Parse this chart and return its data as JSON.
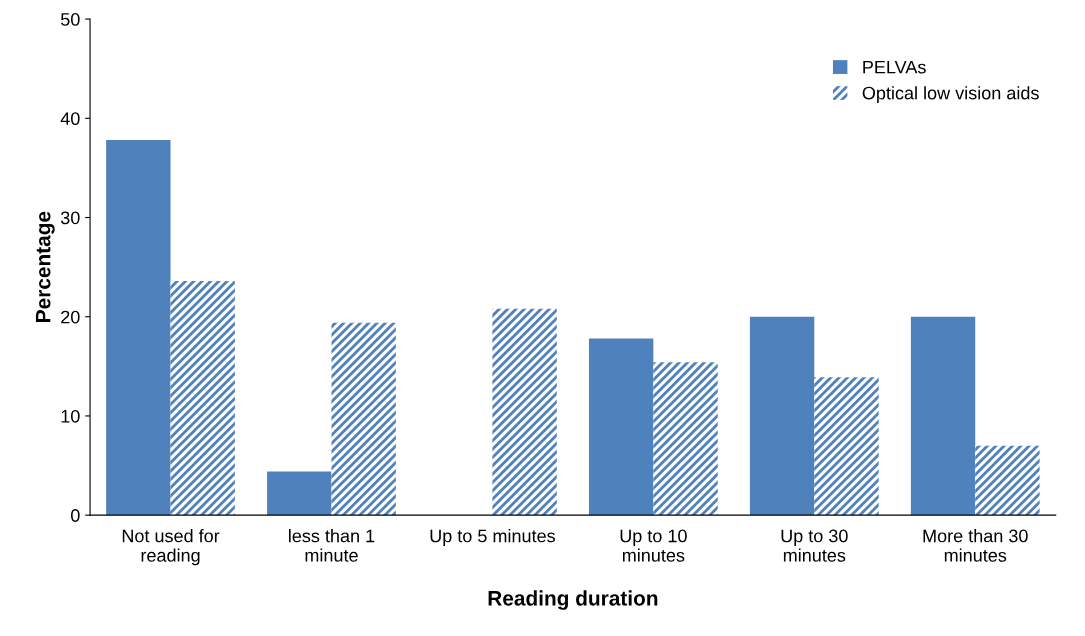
{
  "chart_data": {
    "type": "bar",
    "xlabel": "Reading duration",
    "ylabel": "Percentage",
    "categories": [
      "Not used for\nreading",
      "less than 1\nminute",
      "Up to 5 minutes",
      "Up to 10\nminutes",
      "Up to 30\nminutes",
      "More than 30\nminutes"
    ],
    "series": [
      {
        "name": "PELVAs",
        "color": "#4f81bd",
        "values": [
          37.8,
          4.4,
          0,
          17.8,
          20.0,
          20.0
        ]
      },
      {
        "name": "Optical low vision aids",
        "color": "#4f81bd",
        "values": [
          23.6,
          19.4,
          20.8,
          15.4,
          13.9,
          7.0
        ]
      }
    ],
    "ylim": [
      0,
      50
    ],
    "yticks": [
      0,
      10,
      20,
      30,
      40,
      50
    ],
    "grid": false,
    "legend": "top right"
  }
}
